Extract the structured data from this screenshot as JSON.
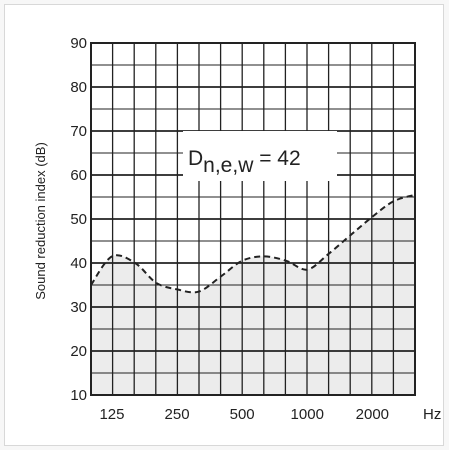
{
  "chart_data": {
    "type": "area",
    "title": "",
    "xlabel": "",
    "ylabel": "Sound reduction index (dB)",
    "x_unit": "Hz",
    "x_scale": "log",
    "x_ticks": [
      125,
      250,
      500,
      1000,
      2000
    ],
    "x_tick_labels": [
      "125",
      "250",
      "500",
      "1000",
      "2000"
    ],
    "y_ticks": [
      10,
      20,
      30,
      40,
      50,
      60,
      70,
      80,
      90
    ],
    "y_tick_labels": [
      "10",
      "20",
      "30",
      "40",
      "50",
      "60",
      "70",
      "80",
      "90"
    ],
    "xlim": [
      100,
      3150
    ],
    "ylim": [
      10,
      90
    ],
    "grid": true,
    "series": [
      {
        "style": "dashed",
        "fill": "#ececec",
        "x": [
          100,
          125,
          160,
          200,
          250,
          315,
          400,
          500,
          630,
          800,
          1000,
          1250,
          1600,
          2000,
          2500,
          3150
        ],
        "y": [
          35,
          41.5,
          40,
          35.5,
          34,
          33.5,
          37,
          40.5,
          41.5,
          40.5,
          38.5,
          42,
          46.5,
          50.5,
          54,
          55.5
        ]
      }
    ],
    "annotation": {
      "text": "D",
      "subscript": "n,e,w",
      "value_text": " = 42"
    }
  },
  "colors": {
    "grid": "#222222",
    "fill": "#ececec",
    "line": "#222222",
    "background": "#ffffff"
  }
}
